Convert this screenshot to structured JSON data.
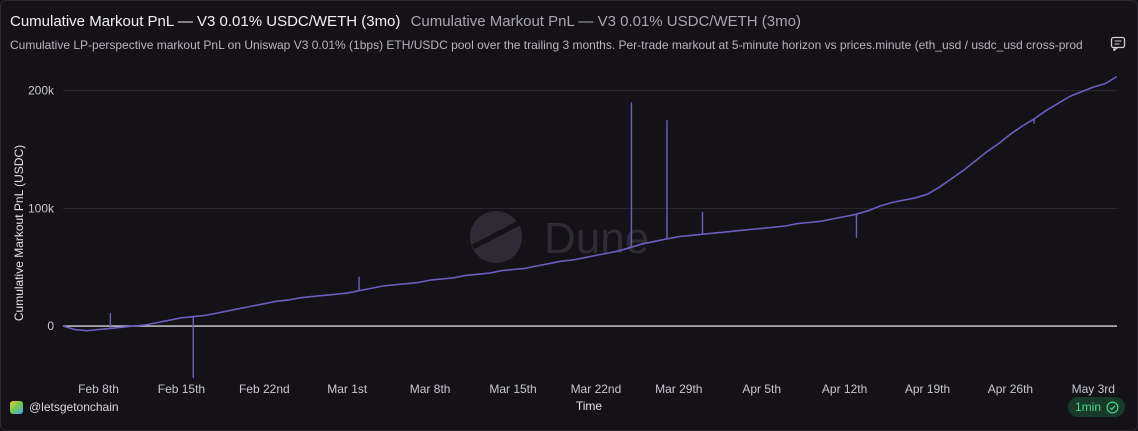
{
  "header": {
    "title": "Cumulative Markout PnL — V3 0.01% USDC/WETH (3mo)",
    "subtitle": "Cumulative Markout PnL — V3 0.01% USDC/WETH (3mo)",
    "description": "Cumulative LP-perspective markout PnL on Uniswap V3 0.01% (1bps) ETH/USDC pool over the trailing 3 months. Per-trade markout at 5-minute horizon vs prices.minute (eth_usd / usdc_usd cross-prod"
  },
  "footer": {
    "author": "@letsgetonchain",
    "refresh_label": "1min"
  },
  "watermark": "Dune",
  "colors": {
    "line": "#6a5fc1",
    "zero_line": "#d8d6dc",
    "grid": "#2c2933",
    "badge_text": "#49d68a"
  },
  "icons": {
    "comment": "comment-icon",
    "refresh_check": "check-circle-icon",
    "watermark_logo": "dune-logo-icon"
  },
  "chart_data": {
    "type": "line",
    "title": "Cumulative Markout PnL — V3 0.01% USDC/WETH (3mo)",
    "xlabel": "Time",
    "ylabel": "Cumulative Markout PnL (USDC)",
    "x_ticks": [
      "Feb 8th",
      "Feb 15th",
      "Feb 22nd",
      "Mar 1st",
      "Mar 8th",
      "Mar 15th",
      "Mar 22nd",
      "Mar 29th",
      "Apr 5th",
      "Apr 12th",
      "Apr 19th",
      "Apr 26th",
      "May 3rd"
    ],
    "y_ticks": [
      0,
      100000,
      200000
    ],
    "y_tick_labels": [
      "0",
      "100k",
      "200k"
    ],
    "ylim": [
      -45000,
      215000
    ],
    "x_range": [
      "2025-02-05",
      "2025-05-05"
    ],
    "grid": true,
    "legend": "none",
    "series": [
      {
        "x": [
          "2025-02-05",
          "2025-02-06",
          "2025-02-07",
          "2025-02-08",
          "2025-02-09",
          "2025-02-10",
          "2025-02-11",
          "2025-02-12",
          "2025-02-13",
          "2025-02-14",
          "2025-02-15",
          "2025-02-16",
          "2025-02-17",
          "2025-02-18",
          "2025-02-19",
          "2025-02-20",
          "2025-02-21",
          "2025-02-22",
          "2025-02-23",
          "2025-02-24",
          "2025-02-25",
          "2025-02-26",
          "2025-02-27",
          "2025-02-28",
          "2025-03-01",
          "2025-03-02",
          "2025-03-03",
          "2025-03-04",
          "2025-03-05",
          "2025-03-06",
          "2025-03-07",
          "2025-03-08",
          "2025-03-09",
          "2025-03-10",
          "2025-03-11",
          "2025-03-12",
          "2025-03-13",
          "2025-03-14",
          "2025-03-15",
          "2025-03-16",
          "2025-03-17",
          "2025-03-18",
          "2025-03-19",
          "2025-03-20",
          "2025-03-21",
          "2025-03-22",
          "2025-03-23",
          "2025-03-24",
          "2025-03-25",
          "2025-03-26",
          "2025-03-27",
          "2025-03-28",
          "2025-03-29",
          "2025-03-30",
          "2025-03-31",
          "2025-04-01",
          "2025-04-02",
          "2025-04-03",
          "2025-04-04",
          "2025-04-05",
          "2025-04-06",
          "2025-04-07",
          "2025-04-08",
          "2025-04-09",
          "2025-04-10",
          "2025-04-11",
          "2025-04-12",
          "2025-04-13",
          "2025-04-14",
          "2025-04-15",
          "2025-04-16",
          "2025-04-17",
          "2025-04-18",
          "2025-04-19",
          "2025-04-20",
          "2025-04-21",
          "2025-04-22",
          "2025-04-23",
          "2025-04-24",
          "2025-04-25",
          "2025-04-26",
          "2025-04-27",
          "2025-04-28",
          "2025-04-29",
          "2025-04-30",
          "2025-05-01",
          "2025-05-02",
          "2025-05-03",
          "2025-05-04",
          "2025-05-05"
        ],
        "y": [
          0,
          -3000,
          -4000,
          -3000,
          -2000,
          -1000,
          0,
          1000,
          3000,
          5000,
          7000,
          8000,
          9000,
          11000,
          13000,
          15000,
          17000,
          19000,
          21000,
          22000,
          24000,
          25000,
          26000,
          27000,
          28000,
          30000,
          32000,
          34000,
          35000,
          36000,
          37000,
          39000,
          40000,
          41000,
          43000,
          44000,
          45000,
          47000,
          48000,
          49000,
          51000,
          53000,
          55000,
          56000,
          58000,
          60000,
          62000,
          64000,
          67000,
          70000,
          72000,
          74000,
          76000,
          77000,
          78000,
          79000,
          80000,
          81000,
          82000,
          83000,
          84000,
          85000,
          87000,
          88000,
          89000,
          91000,
          93000,
          95000,
          98000,
          102000,
          105000,
          107000,
          109000,
          112000,
          118000,
          125000,
          132000,
          140000,
          148000,
          155000,
          163000,
          170000,
          176000,
          183000,
          189000,
          195000,
          199000,
          203000,
          206000,
          212000
        ]
      }
    ],
    "spikes": [
      {
        "x": "2025-02-09",
        "y": 11000
      },
      {
        "x": "2025-02-16",
        "y": -44000
      },
      {
        "x": "2025-03-02",
        "y": 42000
      },
      {
        "x": "2025-03-25",
        "y": 190000
      },
      {
        "x": "2025-03-28",
        "y": 175000
      },
      {
        "x": "2025-03-31",
        "y": 97000
      },
      {
        "x": "2025-04-13",
        "y": 75000
      },
      {
        "x": "2025-04-28",
        "y": 172000
      }
    ]
  }
}
